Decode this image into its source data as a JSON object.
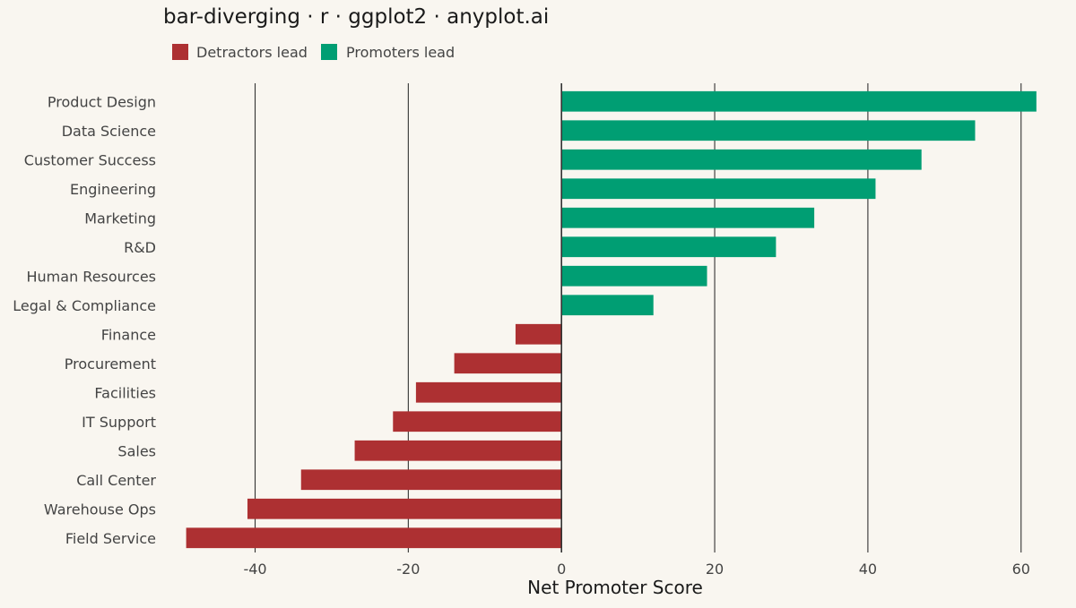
{
  "chart_data": {
    "type": "bar",
    "orientation": "horizontal",
    "title": "bar-diverging · r · ggplot2 · anyplot.ai",
    "xlabel": "Net Promoter Score",
    "ylabel": "",
    "xlim": [
      -52,
      66
    ],
    "x_ticks": [
      -40,
      -20,
      0,
      20,
      40,
      60
    ],
    "x_tick_labels": [
      "-40",
      "-20",
      "0",
      "20",
      "40",
      "60"
    ],
    "grid": "vertical major",
    "legend_position": "top-left",
    "legend": [
      {
        "label": "Detractors lead",
        "color": "#AD3032"
      },
      {
        "label": "Promoters lead",
        "color": "#009E73"
      }
    ],
    "categories": [
      "Product Design",
      "Data Science",
      "Customer Success",
      "Engineering",
      "Marketing",
      "R&D",
      "Human Resources",
      "Legal & Compliance",
      "Finance",
      "Procurement",
      "Facilities",
      "IT Support",
      "Sales",
      "Call Center",
      "Warehouse Ops",
      "Field Service"
    ],
    "values": [
      62,
      54,
      47,
      41,
      33,
      28,
      19,
      12,
      -6,
      -14,
      -19,
      -22,
      -27,
      -34,
      -41,
      -49
    ]
  }
}
